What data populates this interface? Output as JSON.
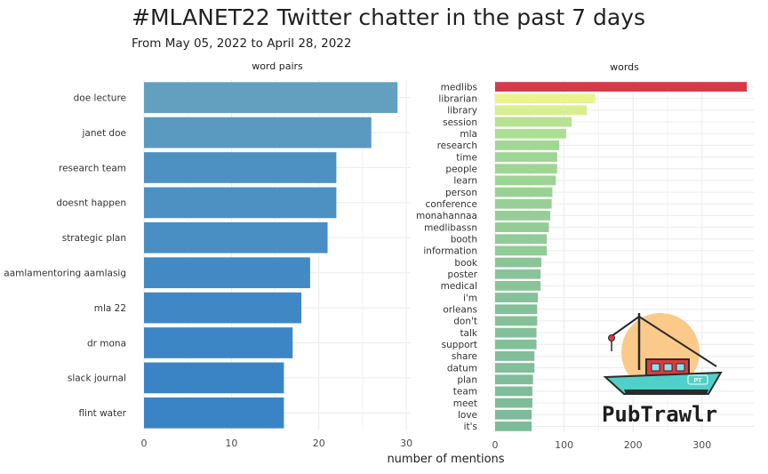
{
  "title": "#MLANET22 Twitter chatter in the past 7 days",
  "subtitle": "From May 05, 2022 to April 28, 2022",
  "x_axis_label": "number of mentions",
  "logo": {
    "text": "PubTrawlr",
    "badge": "PT"
  },
  "chart_data": [
    {
      "type": "bar",
      "orientation": "horizontal",
      "facet_label": "word pairs",
      "categories": [
        "doe lecture",
        "janet doe",
        "research team",
        "doesnt happen",
        "strategic plan",
        "aamlamentoring aamlasig",
        "mla 22",
        "dr mona",
        "slack journal",
        "flint water"
      ],
      "values": [
        29,
        26,
        22,
        22,
        21,
        19,
        18,
        17,
        16,
        16
      ],
      "xlim": [
        0,
        30.5
      ],
      "xticks": [
        0,
        10,
        20,
        30
      ],
      "grid": true,
      "color_low": "#63a0bf",
      "color_high": "#3a84c6"
    },
    {
      "type": "bar",
      "orientation": "horizontal",
      "facet_label": "words",
      "categories": [
        "medlibs",
        "librarian",
        "library",
        "session",
        "mla",
        "research",
        "time",
        "people",
        "learn",
        "person",
        "conference",
        "monahannaa",
        "medlibassn",
        "booth",
        "information",
        "book",
        "poster",
        "medical",
        "i'm",
        "orleans",
        "don't",
        "talk",
        "support",
        "share",
        "datum",
        "plan",
        "team",
        "meet",
        "love",
        "it's"
      ],
      "values": [
        365,
        145,
        133,
        111,
        103,
        93,
        90,
        90,
        88,
        83,
        82,
        80,
        78,
        75,
        75,
        67,
        66,
        66,
        62,
        61,
        61,
        60,
        60,
        57,
        57,
        55,
        54,
        54,
        53,
        53
      ],
      "xlim": [
        0,
        375
      ],
      "xticks": [
        0,
        100,
        200,
        300
      ],
      "grid": true,
      "colors": {
        "top": "#d33b4b",
        "gradient_high": "#e9f48e",
        "gradient_mid": "#a6dc93",
        "gradient_low": "#7dbb9a"
      }
    }
  ]
}
